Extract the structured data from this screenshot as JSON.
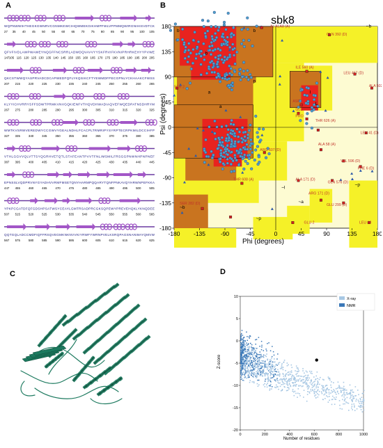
{
  "panels": {
    "a": "A",
    "b": "B",
    "c": "C",
    "d": "D"
  },
  "seq_rows": [
    {
      "ticks": [
        "27",
        "35",
        "40",
        "45",
        "50",
        "55",
        "60",
        "65",
        "70",
        "75",
        "80",
        "85",
        "90",
        "95",
        "100",
        "105"
      ]
    },
    {
      "ticks": [
        "147",
        "105",
        "115",
        "120",
        "125",
        "130",
        "135",
        "140",
        "145",
        "150",
        "155",
        "160",
        "165",
        "170",
        "175",
        "180",
        "185",
        "190",
        "195",
        "200",
        "205"
      ]
    },
    {
      "ticks": [
        "207",
        "215",
        "220",
        "225",
        "230",
        "235",
        "240",
        "245",
        "250",
        "255",
        "260",
        "265"
      ]
    },
    {
      "ticks": [
        "267",
        "275",
        "280",
        "285",
        "290",
        "295",
        "300",
        "305",
        "310",
        "315",
        "320",
        "325"
      ]
    },
    {
      "ticks": [
        "327",
        "335",
        "340",
        "345",
        "350",
        "355",
        "360",
        "365",
        "370",
        "375",
        "380",
        "385"
      ]
    },
    {
      "ticks": [
        "387",
        "395",
        "400",
        "405",
        "410",
        "415",
        "420",
        "425",
        "430",
        "435",
        "440",
        "445"
      ]
    },
    {
      "ticks": [
        "447",
        "455",
        "460",
        "465",
        "470",
        "475",
        "480",
        "485",
        "490",
        "495",
        "500",
        "505"
      ]
    },
    {
      "ticks": [
        "507",
        "515",
        "520",
        "525",
        "530",
        "535",
        "540",
        "545",
        "550",
        "555",
        "560",
        "565"
      ]
    },
    {
      "ticks": [
        "567",
        "575",
        "580",
        "585",
        "590",
        "595",
        "600",
        "605",
        "610",
        "615",
        "620",
        "625"
      ]
    }
  ],
  "rama": {
    "title": "sbk8",
    "xlabel": "Phi (degrees)",
    "ylabel": "Psi (degrees)",
    "xticks": [
      "-180",
      "-135",
      "-90",
      "-45",
      "0",
      "45",
      "90",
      "135",
      "180"
    ],
    "yticks": [
      "180",
      "135",
      "90",
      "45",
      "0",
      "-45",
      "-90",
      "-135",
      "-180"
    ],
    "region_labels": [
      "b",
      "b",
      "a",
      "a",
      "b",
      "L",
      "l",
      "p",
      "~b",
      "~b",
      "~a",
      "~p",
      "~l",
      "~p"
    ],
    "residue_labels": [
      "AL ALA8 (A)",
      "GLN 392 (D)",
      "ILE 560 (A)",
      "LEU 467 (D)",
      "ALA 502 (D)",
      "SER 2",
      "ASP",
      "GLU",
      "PRO",
      "THR 626 (A)",
      "LEU 41 (D)",
      "ARG 607 (D)",
      "ALA 58 (A)",
      "VAL 596 (D)",
      "PHE 6 (D)",
      "ALA 171 (D)",
      "GLN 576 (D)",
      "ARG 171 (D)",
      "GLU 299 (D)",
      "THR 608 (A)",
      "SER 282 (D)",
      "GLU 2",
      "LEU 13"
    ]
  },
  "zscore": {
    "legend": [
      "X-ray",
      "NMR"
    ],
    "xlabel": "Number of residues",
    "ylabel": "Z-score",
    "xticks": [
      "0",
      "200",
      "400",
      "600",
      "800",
      "1000"
    ],
    "yticks": [
      "10",
      "5",
      "0",
      "-5",
      "-10",
      "-15",
      "-20"
    ],
    "colors": {
      "xray": "#a7c7e3",
      "nmr": "#3b78b8",
      "point": "#000000"
    }
  },
  "colors": {
    "core": "#e8231f",
    "allowed": "#c9741f",
    "generous": "#f5f128",
    "disallowed": "#fdfbd2",
    "helix": "#a256c7",
    "protein": "#1d7a5f"
  }
}
